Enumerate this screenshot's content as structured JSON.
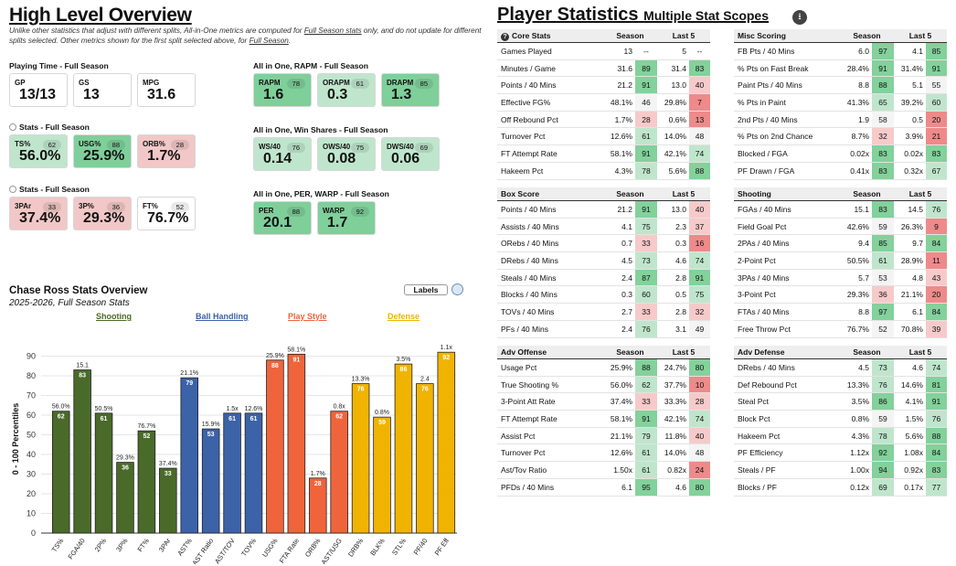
{
  "left": {
    "title": "High Level Overview",
    "note_a": "Unlike other statistics that adjust with different splits, All-in-One metrics are computed for ",
    "note_link": "Full Season stats",
    "note_b": " only, and do not update for different splits selected. Other metrics shown for the first split selected above, for ",
    "note_link2": "Full Season",
    "note_end": ".",
    "sections": [
      {
        "title": "Playing Time - Full Season",
        "radio": false,
        "cards": [
          {
            "label": "GP",
            "value": "13/13",
            "pill": null,
            "tone": "none"
          },
          {
            "label": "GS",
            "value": "13",
            "pill": null,
            "tone": "none"
          },
          {
            "label": "MPG",
            "value": "31.6",
            "pill": null,
            "tone": "none"
          }
        ]
      },
      {
        "title": "Stats - Full Season",
        "radio": true,
        "cards": [
          {
            "label": "TS%",
            "value": "56.0%",
            "pill": "62",
            "tone": "g1"
          },
          {
            "label": "USG%",
            "value": "25.9%",
            "pill": "88",
            "tone": "g2"
          },
          {
            "label": "ORB%",
            "value": "1.7%",
            "pill": "28",
            "tone": "r1"
          }
        ]
      },
      {
        "title": "Stats - Full Season",
        "radio": true,
        "cards": [
          {
            "label": "3PAr",
            "value": "37.4%",
            "pill": "33",
            "tone": "r1"
          },
          {
            "label": "3P%",
            "value": "29.3%",
            "pill": "36",
            "tone": "r1"
          },
          {
            "label": "FT%",
            "value": "76.7%",
            "pill": "52",
            "tone": "none"
          }
        ]
      },
      {
        "title": "All in One, RAPM - Full Season",
        "radio": false,
        "cards": [
          {
            "label": "RAPM",
            "value": "1.6",
            "pill": "78",
            "tone": "g2"
          },
          {
            "label": "ORAPM",
            "value": "0.3",
            "pill": "61",
            "tone": "g1"
          },
          {
            "label": "DRAPM",
            "value": "1.3",
            "pill": "85",
            "tone": "g2"
          }
        ]
      },
      {
        "title": "All in One, Win Shares - Full Season",
        "radio": false,
        "cards": [
          {
            "label": "WS/40",
            "value": "0.14",
            "pill": "76",
            "tone": "g1"
          },
          {
            "label": "OWS/40",
            "value": "0.08",
            "pill": "75",
            "tone": "g1"
          },
          {
            "label": "DWS/40",
            "value": "0.06",
            "pill": "69",
            "tone": "g1"
          }
        ]
      },
      {
        "title": "All in One, PER, WARP - Full Season",
        "radio": false,
        "cards": [
          {
            "label": "PER",
            "value": "20.1",
            "pill": "88",
            "tone": "g2"
          },
          {
            "label": "WARP",
            "value": "1.7",
            "pill": "92",
            "tone": "g2"
          }
        ]
      }
    ],
    "chart_title": "Chase Ross Stats Overview",
    "chart_subtitle": "2025-2026, Full Season Stats",
    "labels_toggle": "Labels",
    "categories": [
      {
        "name": "Shooting",
        "color": "#4a6a2a"
      },
      {
        "name": "Ball Handling",
        "color": "#3c62a8"
      },
      {
        "name": "Play Style",
        "color": "#f0643c"
      },
      {
        "name": "Defense",
        "color": "#f0b400"
      }
    ]
  },
  "chart_data": {
    "type": "bar",
    "title": "Chase Ross Stats Overview",
    "subtitle": "2025-2026, Full Season Stats",
    "ylabel": "0 - 100 Percentiles",
    "ylim": [
      0,
      100
    ],
    "yticks": [
      0,
      10,
      20,
      30,
      40,
      50,
      60,
      70,
      80,
      90
    ],
    "categories": [
      "TS%",
      "FGA/40",
      "2P%",
      "3P%",
      "FT%",
      "3PAr",
      "AST%",
      "AST Ratio",
      "AST/TOV",
      "TOV%",
      "USG%",
      "FTA Rate",
      "ORB%",
      "AST/USG",
      "DRB%",
      "BLK%",
      "STL%",
      "PF/40",
      "PF Eff"
    ],
    "values": [
      62,
      83,
      61,
      36,
      52,
      33,
      79,
      53,
      61,
      61,
      88,
      91,
      28,
      62,
      76,
      59,
      86,
      76,
      92
    ],
    "raw_labels": [
      "56.0%",
      "15.1",
      "50.5%",
      "29.3%",
      "76.7%",
      "37.4%",
      "21.1%",
      "15.9%",
      "1.5x",
      "12.6%",
      "25.9%",
      "58.1%",
      "1.7%",
      "0.8x",
      "13.3%",
      "0.8%",
      "3.5%",
      "2.4",
      "1.1x"
    ],
    "groups": [
      "Shooting",
      "Shooting",
      "Shooting",
      "Shooting",
      "Shooting",
      "Shooting",
      "Ball Handling",
      "Ball Handling",
      "Ball Handling",
      "Ball Handling",
      "Play Style",
      "Play Style",
      "Play Style",
      "Play Style",
      "Defense",
      "Defense",
      "Defense",
      "Defense",
      "Defense"
    ]
  },
  "right": {
    "title": "Player Statistics",
    "subtitle": "Multiple Stat Scopes",
    "season": "Season",
    "last5": "Last 5",
    "tables": [
      {
        "name": "Core Stats",
        "info": true,
        "rows": [
          [
            "Games Played",
            "13",
            "--",
            "5",
            "--"
          ],
          [
            "Minutes / Game",
            "31.6",
            "89",
            "31.4",
            "83"
          ],
          [
            "Points / 40 Mins",
            "21.2",
            "91",
            "13.0",
            "40"
          ],
          [
            "Effective FG%",
            "48.1%",
            "46",
            "29.8%",
            "7"
          ],
          [
            "Off Rebound Pct",
            "1.7%",
            "28",
            "0.6%",
            "13"
          ],
          [
            "Turnover Pct",
            "12.6%",
            "61",
            "14.0%",
            "48"
          ],
          [
            "FT Attempt Rate",
            "58.1%",
            "91",
            "42.1%",
            "74"
          ],
          [
            "Hakeem Pct",
            "4.3%",
            "78",
            "5.6%",
            "88"
          ]
        ]
      },
      {
        "name": "Misc Scoring",
        "info": false,
        "rows": [
          [
            "FB Pts / 40 Mins",
            "6.0",
            "97",
            "4.1",
            "85"
          ],
          [
            "% Pts on Fast Break",
            "28.4%",
            "91",
            "31.4%",
            "91"
          ],
          [
            "Paint Pts / 40 Mins",
            "8.8",
            "88",
            "5.1",
            "55"
          ],
          [
            "% Pts in Paint",
            "41.3%",
            "65",
            "39.2%",
            "60"
          ],
          [
            "2nd Pts / 40 Mins",
            "1.9",
            "58",
            "0.5",
            "20"
          ],
          [
            "% Pts on 2nd Chance",
            "8.7%",
            "32",
            "3.9%",
            "21"
          ],
          [
            "Blocked / FGA",
            "0.02x",
            "83",
            "0.02x",
            "83"
          ],
          [
            "PF Drawn / FGA",
            "0.41x",
            "83",
            "0.32x",
            "67"
          ]
        ]
      },
      {
        "name": "Box Score",
        "info": false,
        "rows": [
          [
            "Points / 40 Mins",
            "21.2",
            "91",
            "13.0",
            "40"
          ],
          [
            "Assists / 40 Mins",
            "4.1",
            "75",
            "2.3",
            "37"
          ],
          [
            "ORebs / 40 Mins",
            "0.7",
            "33",
            "0.3",
            "16"
          ],
          [
            "DRebs / 40 Mins",
            "4.5",
            "73",
            "4.6",
            "74"
          ],
          [
            "Steals / 40 Mins",
            "2.4",
            "87",
            "2.8",
            "91"
          ],
          [
            "Blocks / 40 Mins",
            "0.3",
            "60",
            "0.5",
            "75"
          ],
          [
            "TOVs / 40 Mins",
            "2.7",
            "33",
            "2.8",
            "32"
          ],
          [
            "PFs / 40 Mins",
            "2.4",
            "76",
            "3.1",
            "49"
          ]
        ]
      },
      {
        "name": "Shooting",
        "info": false,
        "rows": [
          [
            "FGAs / 40 Mins",
            "15.1",
            "83",
            "14.5",
            "76"
          ],
          [
            "Field Goal Pct",
            "42.6%",
            "59",
            "26.3%",
            "9"
          ],
          [
            "2PAs / 40 Mins",
            "9.4",
            "85",
            "9.7",
            "84"
          ],
          [
            "2-Point Pct",
            "50.5%",
            "61",
            "28.9%",
            "11"
          ],
          [
            "3PAs / 40 Mins",
            "5.7",
            "53",
            "4.8",
            "43"
          ],
          [
            "3-Point Pct",
            "29.3%",
            "36",
            "21.1%",
            "20"
          ],
          [
            "FTAs / 40 Mins",
            "8.8",
            "97",
            "6.1",
            "84"
          ],
          [
            "Free Throw Pct",
            "76.7%",
            "52",
            "70.8%",
            "39"
          ]
        ]
      },
      {
        "name": "Adv Offense",
        "info": false,
        "rows": [
          [
            "Usage Pct",
            "25.9%",
            "88",
            "24.7%",
            "80"
          ],
          [
            "True Shooting %",
            "56.0%",
            "62",
            "37.7%",
            "10"
          ],
          [
            "3-Point Att Rate",
            "37.4%",
            "33",
            "33.3%",
            "28"
          ],
          [
            "FT Attempt Rate",
            "58.1%",
            "91",
            "42.1%",
            "74"
          ],
          [
            "Assist Pct",
            "21.1%",
            "79",
            "11.8%",
            "40"
          ],
          [
            "Turnover Pct",
            "12.6%",
            "61",
            "14.0%",
            "48"
          ],
          [
            "Ast/Tov Ratio",
            "1.50x",
            "61",
            "0.82x",
            "24"
          ],
          [
            "PFDs / 40 Mins",
            "6.1",
            "95",
            "4.6",
            "80"
          ]
        ]
      },
      {
        "name": "Adv Defense",
        "info": false,
        "rows": [
          [
            "DRebs / 40 Mins",
            "4.5",
            "73",
            "4.6",
            "74"
          ],
          [
            "Def Rebound Pct",
            "13.3%",
            "76",
            "14.6%",
            "81"
          ],
          [
            "Steal Pct",
            "3.5%",
            "86",
            "4.1%",
            "91"
          ],
          [
            "Block Pct",
            "0.8%",
            "59",
            "1.5%",
            "76"
          ],
          [
            "Hakeem Pct",
            "4.3%",
            "78",
            "5.6%",
            "88"
          ],
          [
            "PF Efficiency",
            "1.12x",
            "92",
            "1.08x",
            "84"
          ],
          [
            "Steals / PF",
            "1.00x",
            "94",
            "0.92x",
            "83"
          ],
          [
            "Blocks / PF",
            "0.12x",
            "69",
            "0.17x",
            "77"
          ]
        ]
      }
    ]
  }
}
